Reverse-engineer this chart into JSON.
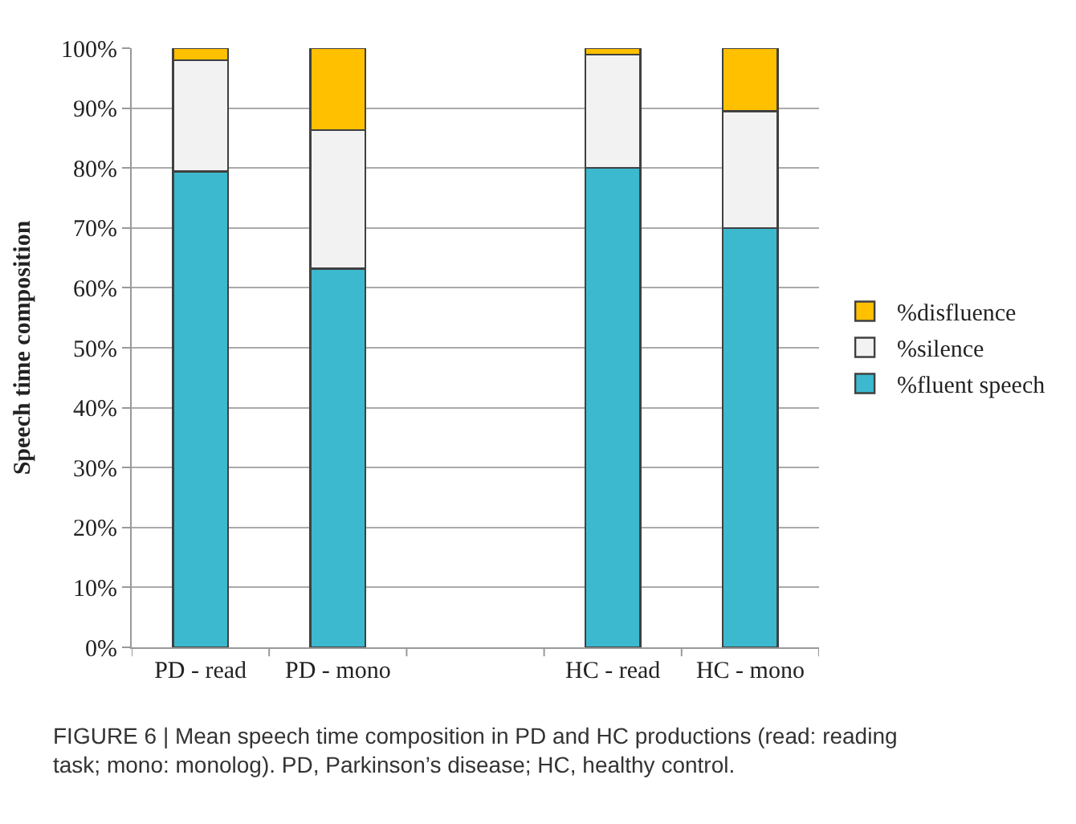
{
  "chart_data": {
    "type": "bar",
    "stacked": true,
    "ylabel": "Speech time composition",
    "categories": [
      "PD - read",
      "PD - mono",
      null,
      "HC - read",
      "HC - mono"
    ],
    "series": [
      {
        "name": "%fluent speech",
        "color": "#3cb9cf",
        "values": [
          79.4,
          63.2,
          null,
          80.0,
          70.0
        ]
      },
      {
        "name": "%silence",
        "color": "#f2f2f2",
        "values": [
          18.6,
          23.1,
          null,
          18.9,
          19.5
        ]
      },
      {
        "name": "%disfluence",
        "color": "#ffc000",
        "values": [
          2.0,
          13.7,
          null,
          1.1,
          10.5
        ]
      }
    ],
    "ylim": [
      0,
      100
    ],
    "yticks": [
      {
        "value": 0,
        "label": "0%"
      },
      {
        "value": 10,
        "label": "10%"
      },
      {
        "value": 20,
        "label": "20%"
      },
      {
        "value": 30,
        "label": "30%"
      },
      {
        "value": 40,
        "label": "40%"
      },
      {
        "value": 50,
        "label": "50%"
      },
      {
        "value": 60,
        "label": "60%"
      },
      {
        "value": 70,
        "label": "70%"
      },
      {
        "value": 80,
        "label": "80%"
      },
      {
        "value": 90,
        "label": "90%"
      },
      {
        "value": 100,
        "label": "100%"
      }
    ],
    "grid": "y",
    "legend": "right",
    "annotations": [
      "FIGURE 6 | Mean speech time composition in PD and HC productions (read: reading task; mono: monolog). PD, Parkinson’s disease; HC, healthy control."
    ]
  }
}
